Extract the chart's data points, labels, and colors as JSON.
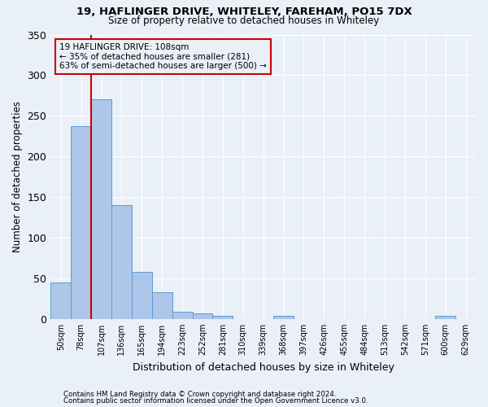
{
  "title1": "19, HAFLINGER DRIVE, WHITELEY, FAREHAM, PO15 7DX",
  "title2": "Size of property relative to detached houses in Whiteley",
  "xlabel": "Distribution of detached houses by size in Whiteley",
  "ylabel": "Number of detached properties",
  "footnote1": "Contains HM Land Registry data © Crown copyright and database right 2024.",
  "footnote2": "Contains public sector information licensed under the Open Government Licence v3.0.",
  "bar_labels": [
    "50sqm",
    "78sqm",
    "107sqm",
    "136sqm",
    "165sqm",
    "194sqm",
    "223sqm",
    "252sqm",
    "281sqm",
    "310sqm",
    "339sqm",
    "368sqm",
    "397sqm",
    "426sqm",
    "455sqm",
    "484sqm",
    "513sqm",
    "542sqm",
    "571sqm",
    "600sqm",
    "629sqm"
  ],
  "bar_values": [
    45,
    237,
    270,
    140,
    58,
    33,
    9,
    7,
    4,
    0,
    0,
    4,
    0,
    0,
    0,
    0,
    0,
    0,
    0,
    4,
    0
  ],
  "bar_color": "#aec6e8",
  "bar_edge_color": "#5b9bd5",
  "ylim": [
    0,
    350
  ],
  "yticks": [
    0,
    50,
    100,
    150,
    200,
    250,
    300,
    350
  ],
  "red_line_x": 1.5,
  "annotation_title": "19 HAFLINGER DRIVE: 108sqm",
  "annotation_line1": "← 35% of detached houses are smaller (281)",
  "annotation_line2": "63% of semi-detached houses are larger (500) →",
  "annotation_color": "#cc0000",
  "background_color": "#eaf0f8",
  "grid_color": "#ffffff"
}
